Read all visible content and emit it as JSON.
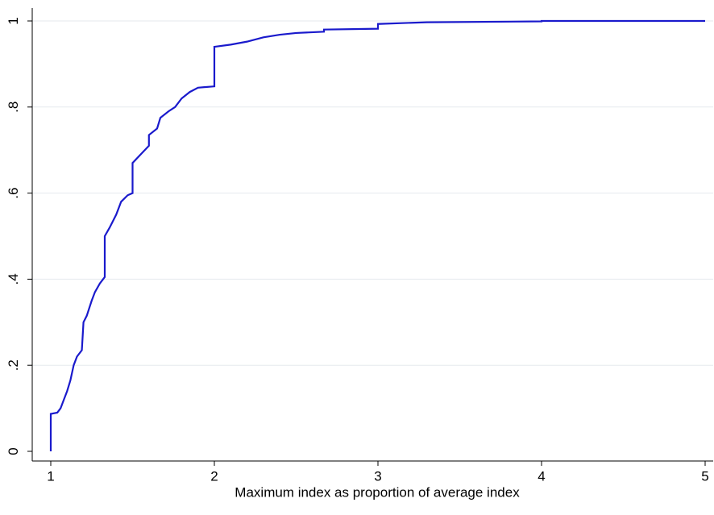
{
  "chart_data": {
    "type": "line",
    "xlabel": "Maximum index as proportion of average index",
    "x": [
      1,
      1,
      1.04,
      1.06,
      1.08,
      1.1,
      1.12,
      1.14,
      1.16,
      1.19,
      1.2,
      1.22,
      1.25,
      1.27,
      1.3,
      1.33,
      1.33,
      1.36,
      1.4,
      1.43,
      1.47,
      1.5,
      1.5,
      1.55,
      1.6,
      1.6,
      1.65,
      1.67,
      1.72,
      1.76,
      1.8,
      1.85,
      1.9,
      2,
      2,
      2.1,
      2.2,
      2.3,
      2.4,
      2.5,
      2.67,
      2.67,
      3,
      3,
      3.3,
      4,
      4,
      5
    ],
    "series": [
      {
        "color": "#1a1acc",
        "values": [
          0,
          0.087,
          0.09,
          0.1,
          0.12,
          0.14,
          0.165,
          0.2,
          0.22,
          0.235,
          0.3,
          0.315,
          0.35,
          0.37,
          0.39,
          0.405,
          0.5,
          0.52,
          0.55,
          0.58,
          0.595,
          0.6,
          0.67,
          0.69,
          0.71,
          0.735,
          0.75,
          0.775,
          0.79,
          0.8,
          0.82,
          0.835,
          0.845,
          0.848,
          0.94,
          0.945,
          0.952,
          0.962,
          0.968,
          0.972,
          0.975,
          0.98,
          0.982,
          0.993,
          0.997,
          0.999,
          1,
          1
        ]
      }
    ],
    "xlim": [
      1,
      5
    ],
    "xticks": [
      1,
      2,
      3,
      4,
      5
    ],
    "ylim": [
      0,
      1
    ],
    "yticks": [
      0,
      {
        "value": 0.2,
        "label": ".2"
      },
      {
        "value": 0.4,
        "label": ".4"
      },
      {
        "value": 0.6,
        "label": ".6"
      },
      {
        "value": 0.8,
        "label": ".8"
      },
      1
    ],
    "grid": true
  }
}
